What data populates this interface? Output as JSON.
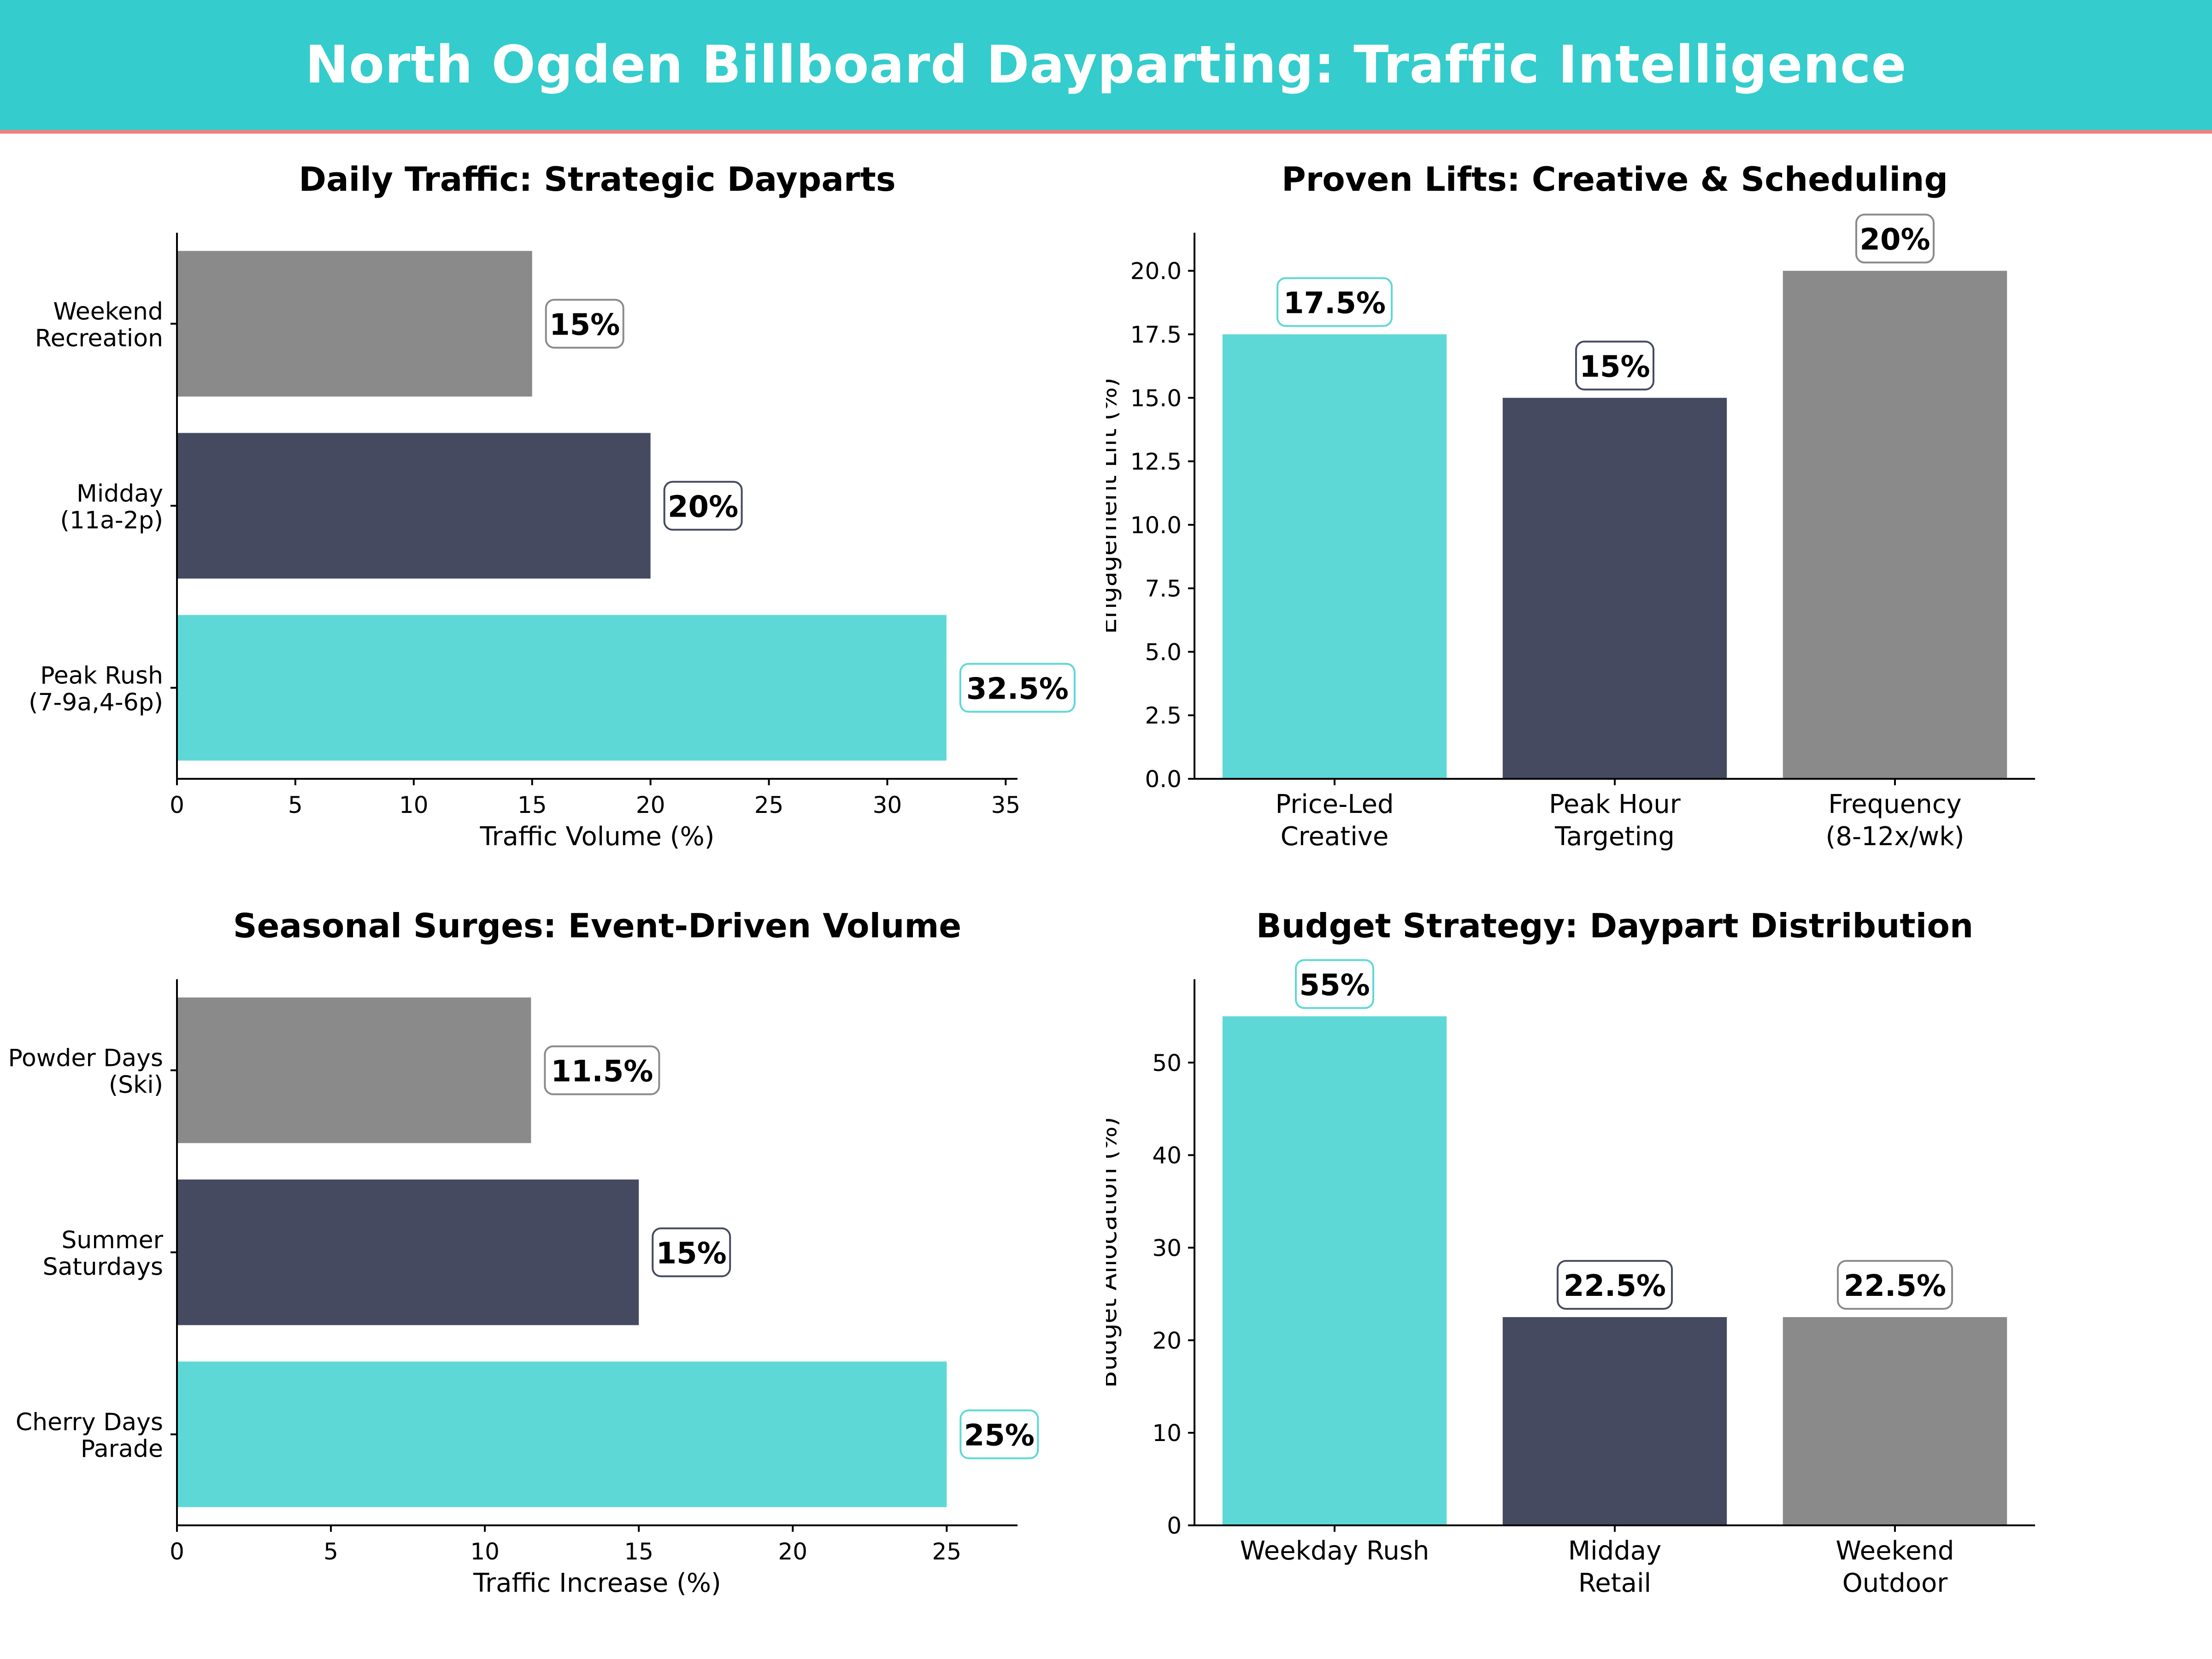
{
  "header": {
    "title": "North Ogden Billboard Dayparting: Traffic Intelligence"
  },
  "colors": {
    "teal": "#5DD8D6",
    "navy": "#454A60",
    "gray": "#8A8A8A",
    "header_bg": "#34CCCC",
    "header_line": "#F08080"
  },
  "chart_data": [
    {
      "type": "bar",
      "orientation": "horizontal",
      "title": "Daily Traffic: Strategic Dayparts",
      "xlabel": "Traffic Volume (%)",
      "ylabel": "",
      "categories": [
        [
          "Peak Rush",
          "(7-9a,4-6p)"
        ],
        [
          "Midday",
          "(11a-2p)"
        ],
        [
          "Weekend",
          "Recreation"
        ]
      ],
      "values": [
        32.5,
        20,
        15
      ],
      "value_labels": [
        "32.5%",
        "20%",
        "15%"
      ],
      "colors": [
        "#5DD8D6",
        "#454A60",
        "#8A8A8A"
      ],
      "xlim": [
        0,
        35.5
      ],
      "ticks": [
        0,
        5,
        10,
        15,
        20,
        25,
        30,
        35
      ],
      "tick_labels": [
        "0",
        "5",
        "10",
        "15",
        "20",
        "25",
        "30",
        "35"
      ]
    },
    {
      "type": "bar",
      "orientation": "vertical",
      "title": "Proven Lifts: Creative & Scheduling",
      "xlabel": "",
      "ylabel": "Engagement Lift (%)",
      "categories": [
        [
          "Price-Led",
          "Creative"
        ],
        [
          "Peak Hour",
          "Targeting"
        ],
        [
          "Frequency",
          "(8-12x/wk)"
        ]
      ],
      "values": [
        17.5,
        15,
        20
      ],
      "value_labels": [
        "17.5%",
        "15%",
        "20%"
      ],
      "colors": [
        "#5DD8D6",
        "#454A60",
        "#8A8A8A"
      ],
      "ylim": [
        0,
        21.5
      ],
      "ticks": [
        0,
        2.5,
        5,
        7.5,
        10,
        12.5,
        15,
        17.5,
        20
      ],
      "tick_labels": [
        "0.0",
        "2.5",
        "5.0",
        "7.5",
        "10.0",
        "12.5",
        "15.0",
        "17.5",
        "20.0"
      ]
    },
    {
      "type": "bar",
      "orientation": "horizontal",
      "title": "Seasonal Surges: Event-Driven Volume",
      "xlabel": "Traffic Increase (%)",
      "ylabel": "",
      "categories": [
        [
          "Cherry Days",
          "Parade"
        ],
        [
          "Summer",
          "Saturdays"
        ],
        [
          "Powder Days",
          "(Ski)"
        ]
      ],
      "values": [
        25,
        15,
        11.5
      ],
      "value_labels": [
        "25%",
        "15%",
        "11.5%"
      ],
      "colors": [
        "#5DD8D6",
        "#454A60",
        "#8A8A8A"
      ],
      "xlim": [
        0,
        27.3
      ],
      "ticks": [
        0,
        5,
        10,
        15,
        20,
        25
      ],
      "tick_labels": [
        "0",
        "5",
        "10",
        "15",
        "20",
        "25"
      ]
    },
    {
      "type": "bar",
      "orientation": "vertical",
      "title": "Budget Strategy: Daypart Distribution",
      "xlabel": "",
      "ylabel": "Budget Allocation (%)",
      "categories": [
        [
          "Weekday Rush"
        ],
        [
          "Midday",
          "Retail"
        ],
        [
          "Weekend",
          "Outdoor"
        ]
      ],
      "values": [
        55,
        22.5,
        22.5
      ],
      "value_labels": [
        "55%",
        "22.5%",
        "22.5%"
      ],
      "colors": [
        "#5DD8D6",
        "#454A60",
        "#8A8A8A"
      ],
      "ylim": [
        0,
        59
      ],
      "ticks": [
        0,
        10,
        20,
        30,
        40,
        50
      ],
      "tick_labels": [
        "0",
        "10",
        "20",
        "30",
        "40",
        "50"
      ]
    }
  ]
}
